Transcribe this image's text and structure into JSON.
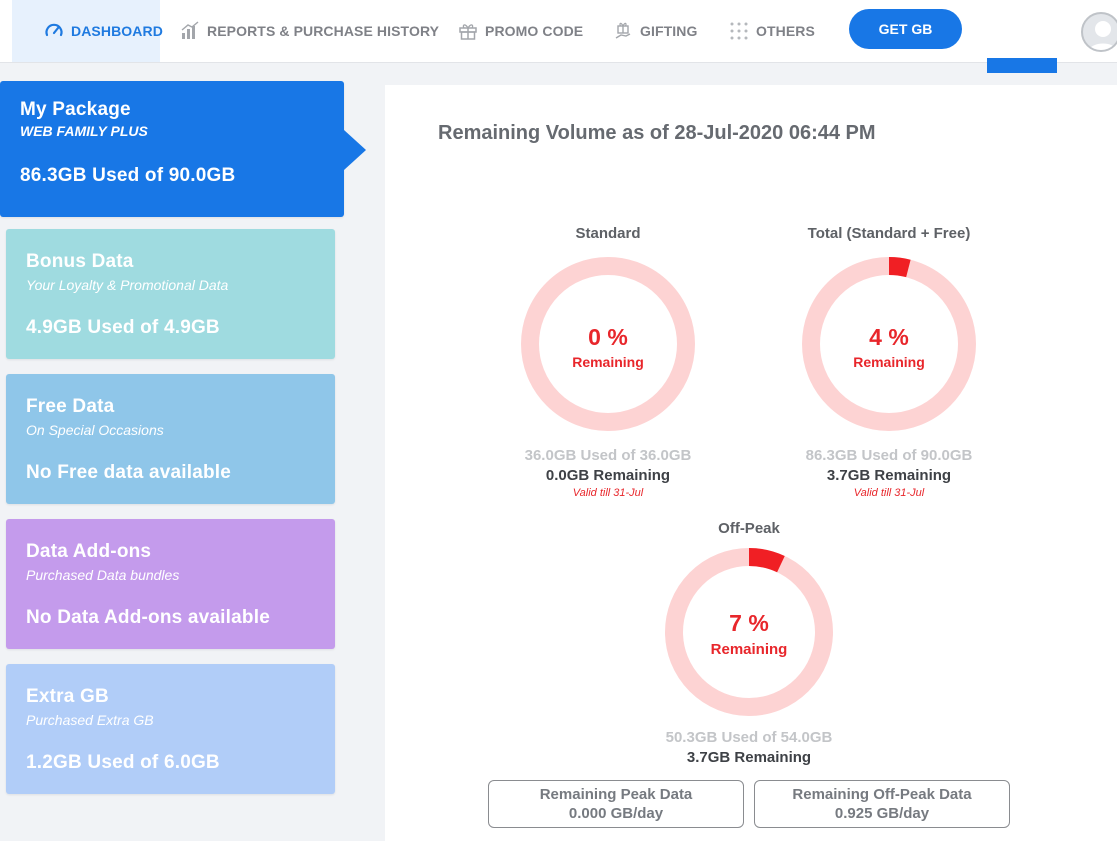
{
  "nav": {
    "dashboard": "DASHBOARD",
    "reports": "REPORTS & PURCHASE HISTORY",
    "promo": "PROMO CODE",
    "gifting": "GIFTING",
    "others": "OTHERS",
    "get_gb": "GET GB"
  },
  "cards": [
    {
      "title": "My Package",
      "subtitle": "WEB FAMILY PLUS",
      "value": "86.3GB Used of 90.0GB",
      "color": "#1877e6"
    },
    {
      "title": "Bonus Data",
      "subtitle": "Your Loyalty & Promotional Data",
      "value": "4.9GB Used of 4.9GB",
      "color": "#9fdbe0"
    },
    {
      "title": "Free Data",
      "subtitle": "On Special Occasions",
      "value": "No Free data available",
      "color": "#8fc6e9"
    },
    {
      "title": "Data Add-ons",
      "subtitle": "Purchased Data bundles",
      "value": "No Data Add-ons available",
      "color": "#c49bec"
    },
    {
      "title": "Extra GB",
      "subtitle": "Purchased Extra GB",
      "value": "1.2GB Used of 6.0GB",
      "color": "#b1cdf8"
    }
  ],
  "main": {
    "title": "Remaining Volume as of 28-Jul-2020 06:44 PM",
    "gauges": [
      {
        "label": "Standard",
        "percent": 0,
        "percent_text": "0 %",
        "remaining_word": "Remaining",
        "used": "36.0GB Used of 36.0GB",
        "remaining": "0.0GB Remaining",
        "valid": "Valid till 31-Jul"
      },
      {
        "label": "Total (Standard + Free)",
        "percent": 4,
        "percent_text": "4 %",
        "remaining_word": "Remaining",
        "used": "86.3GB Used of 90.0GB",
        "remaining": "3.7GB Remaining",
        "valid": "Valid till 31-Jul"
      },
      {
        "label": "Off-Peak",
        "percent": 7,
        "percent_text": "7 %",
        "remaining_word": "Remaining",
        "used": "50.3GB Used of 54.0GB",
        "remaining": "3.7GB Remaining",
        "valid": ""
      }
    ],
    "peak_box": {
      "label": "Remaining Peak Data",
      "value": "0.000 GB/day"
    },
    "offpeak_box": {
      "label": "Remaining Off-Peak Data",
      "value": "0.925 GB/day"
    }
  },
  "colors": {
    "accent": "#1877e6",
    "ring": "#fdd3d3",
    "ring_fill": "#f01f24",
    "alert": "#e8262b"
  }
}
